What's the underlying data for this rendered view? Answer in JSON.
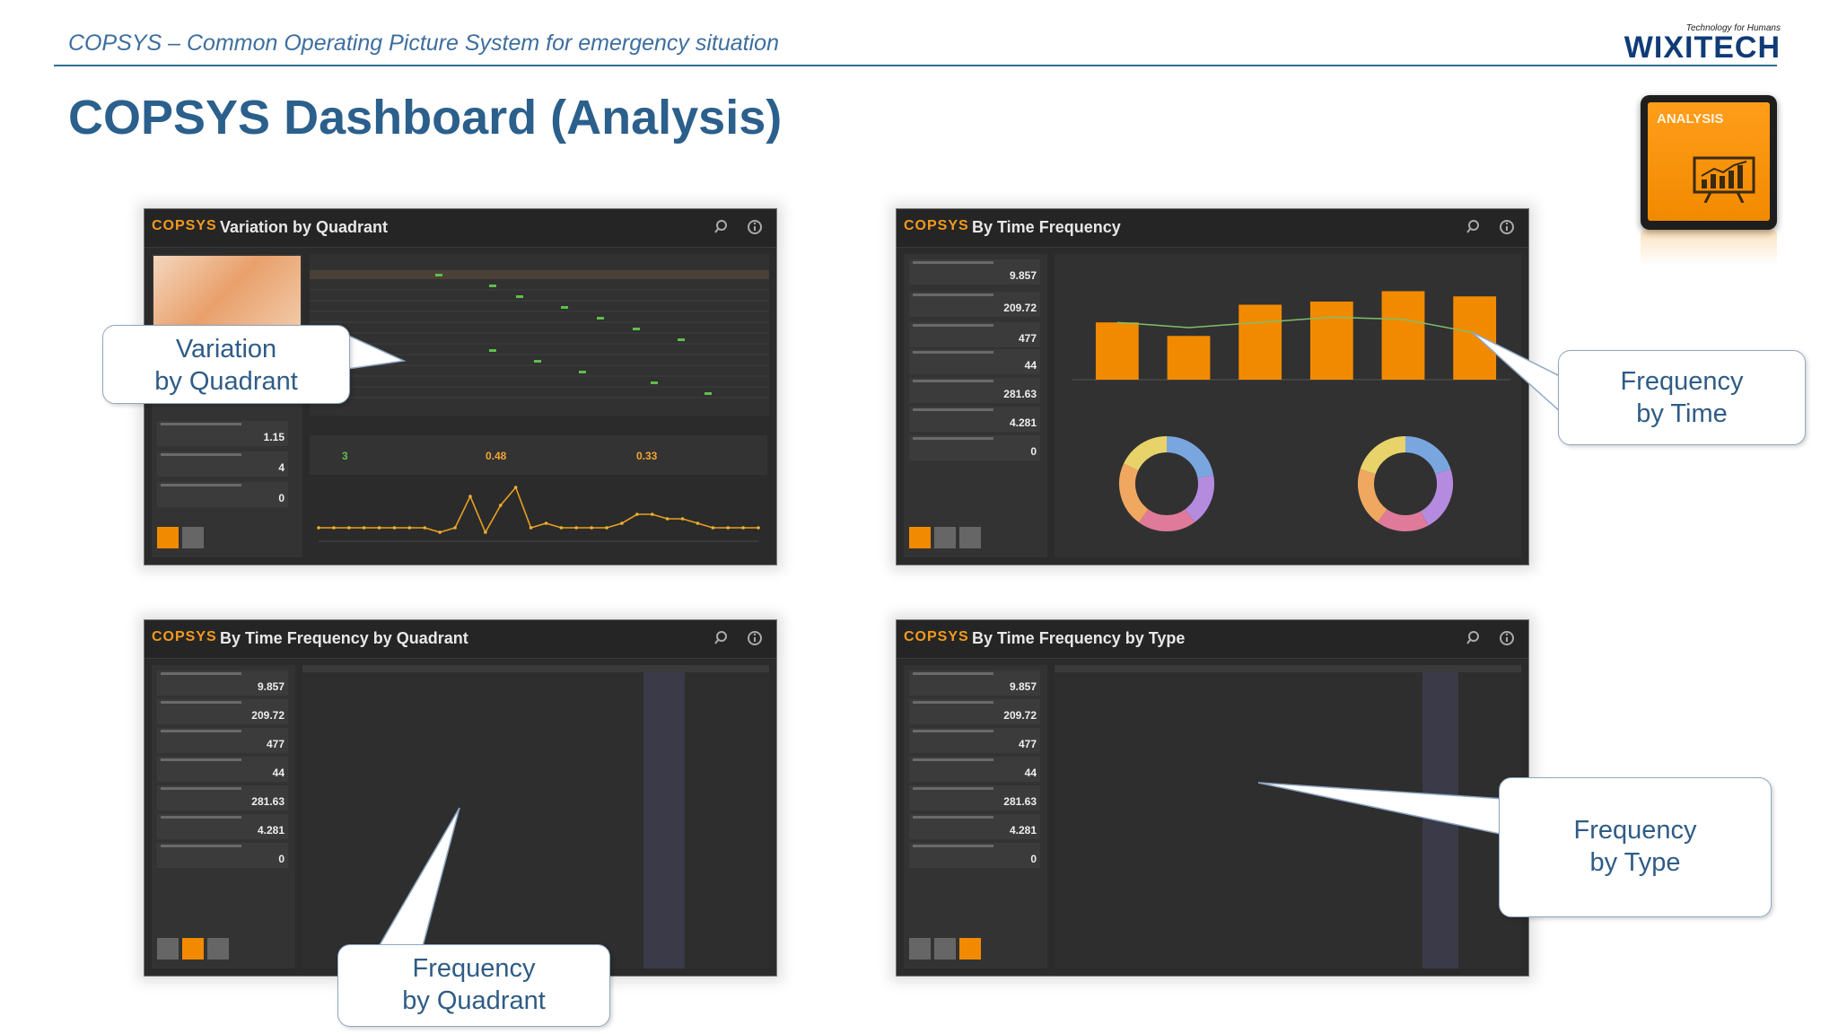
{
  "header": {
    "subtitle": "COPSYS – Common Operating Picture System for emergency situation",
    "title": "COPSYS Dashboard (Analysis)",
    "logo_tagline": "Technology for Humans",
    "logo_name": "WIXITECH"
  },
  "analysis_icon": {
    "label": "ANALYSIS",
    "color": "#f28a00"
  },
  "brand": "COPSYS",
  "panels": {
    "p1": {
      "title": "Variation by Quadrant",
      "sidebar_values": [
        "1.15",
        "4",
        "0"
      ]
    },
    "p2": {
      "title": "By Time Frequency",
      "sidebar_values": [
        "9.857",
        "209.72",
        "477",
        "44",
        "281.63",
        "4.281",
        "0"
      ]
    },
    "p3": {
      "title": "By Time Frequency by Quadrant",
      "sidebar_values": [
        "9.857",
        "209.72",
        "477",
        "44",
        "281.63",
        "4.281",
        "0"
      ]
    },
    "p4": {
      "title": "By Time Frequency by Type",
      "sidebar_values": [
        "9.857",
        "209.72",
        "477",
        "44",
        "281.63",
        "4.281",
        "0"
      ]
    }
  },
  "p1_widgets": {
    "count_today": "3",
    "month_change": "0.48",
    "year_change": "0.33"
  },
  "callouts": {
    "c1": {
      "line1": "Variation",
      "line2": "by Quadrant"
    },
    "c2": {
      "line1": "Frequency",
      "line2": "by Time"
    },
    "c3": {
      "line1": "Frequency",
      "line2": "by Quadrant"
    },
    "c4": {
      "line1": "Frequency",
      "line2": "by Type"
    }
  },
  "colors": {
    "accent": "#f28a00",
    "panel_bg": "#2b2b2b",
    "callout_text": "#2f5c86",
    "title": "#2b5f8c"
  },
  "chart_data": [
    {
      "type": "bar",
      "values": [
        0.55,
        0.42,
        0.72,
        0.75,
        0.85,
        0.8
      ],
      "note_series": "bar values normalized from bar heights (no readable axis)",
      "line_values": [
        0.55,
        0.5,
        0.55,
        0.6,
        0.58,
        0.45
      ]
    },
    {
      "type": "pie",
      "values": [
        22,
        18,
        20,
        22,
        18
      ]
    },
    {
      "type": "pie",
      "values": [
        20,
        22,
        18,
        20,
        20
      ]
    },
    {
      "type": "line",
      "values": [
        3,
        3,
        3,
        3,
        3,
        3,
        3,
        3,
        2,
        3,
        10,
        2,
        8,
        12,
        3,
        4,
        3,
        3,
        3,
        3,
        4,
        6,
        6,
        5,
        5,
        4,
        3,
        3,
        3,
        3
      ]
    }
  ]
}
